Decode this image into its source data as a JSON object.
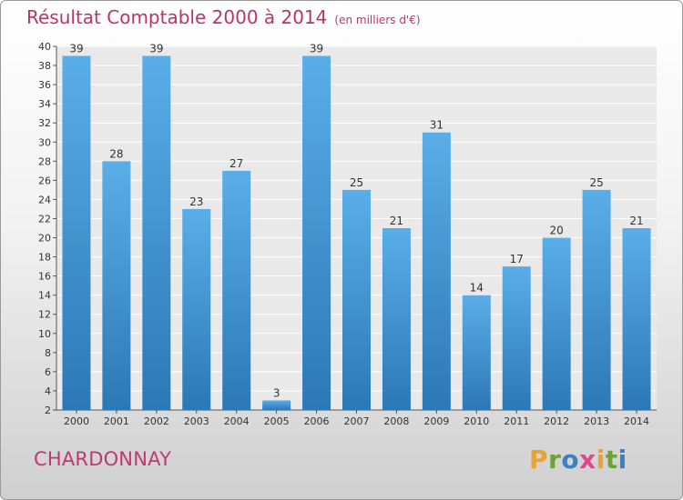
{
  "header": {
    "title": "Résultat Comptable 2000 à 2014",
    "unit": "(en milliers d'€)"
  },
  "footer": {
    "town": "CHARDONNAY",
    "logo_text": "Proxiti",
    "logo_colors": [
      "#e8a330",
      "#6aa33a",
      "#3d7fc1",
      "#d94b8c",
      "#e8a330",
      "#6aa33a",
      "#3d7fc1"
    ]
  },
  "chart_data": {
    "type": "bar",
    "categories": [
      "2000",
      "2001",
      "2002",
      "2003",
      "2004",
      "2005",
      "2006",
      "2007",
      "2008",
      "2009",
      "2010",
      "2011",
      "2012",
      "2013",
      "2014"
    ],
    "values": [
      39,
      28,
      39,
      23,
      27,
      3,
      39,
      25,
      21,
      31,
      14,
      17,
      20,
      25,
      21
    ],
    "ylim": [
      2,
      40
    ],
    "yticks": [
      2,
      4,
      6,
      8,
      10,
      12,
      14,
      16,
      18,
      20,
      22,
      24,
      26,
      28,
      30,
      32,
      34,
      36,
      38,
      40
    ],
    "grid": true,
    "bar_color": "#4a9edb",
    "show_value_labels": true
  }
}
